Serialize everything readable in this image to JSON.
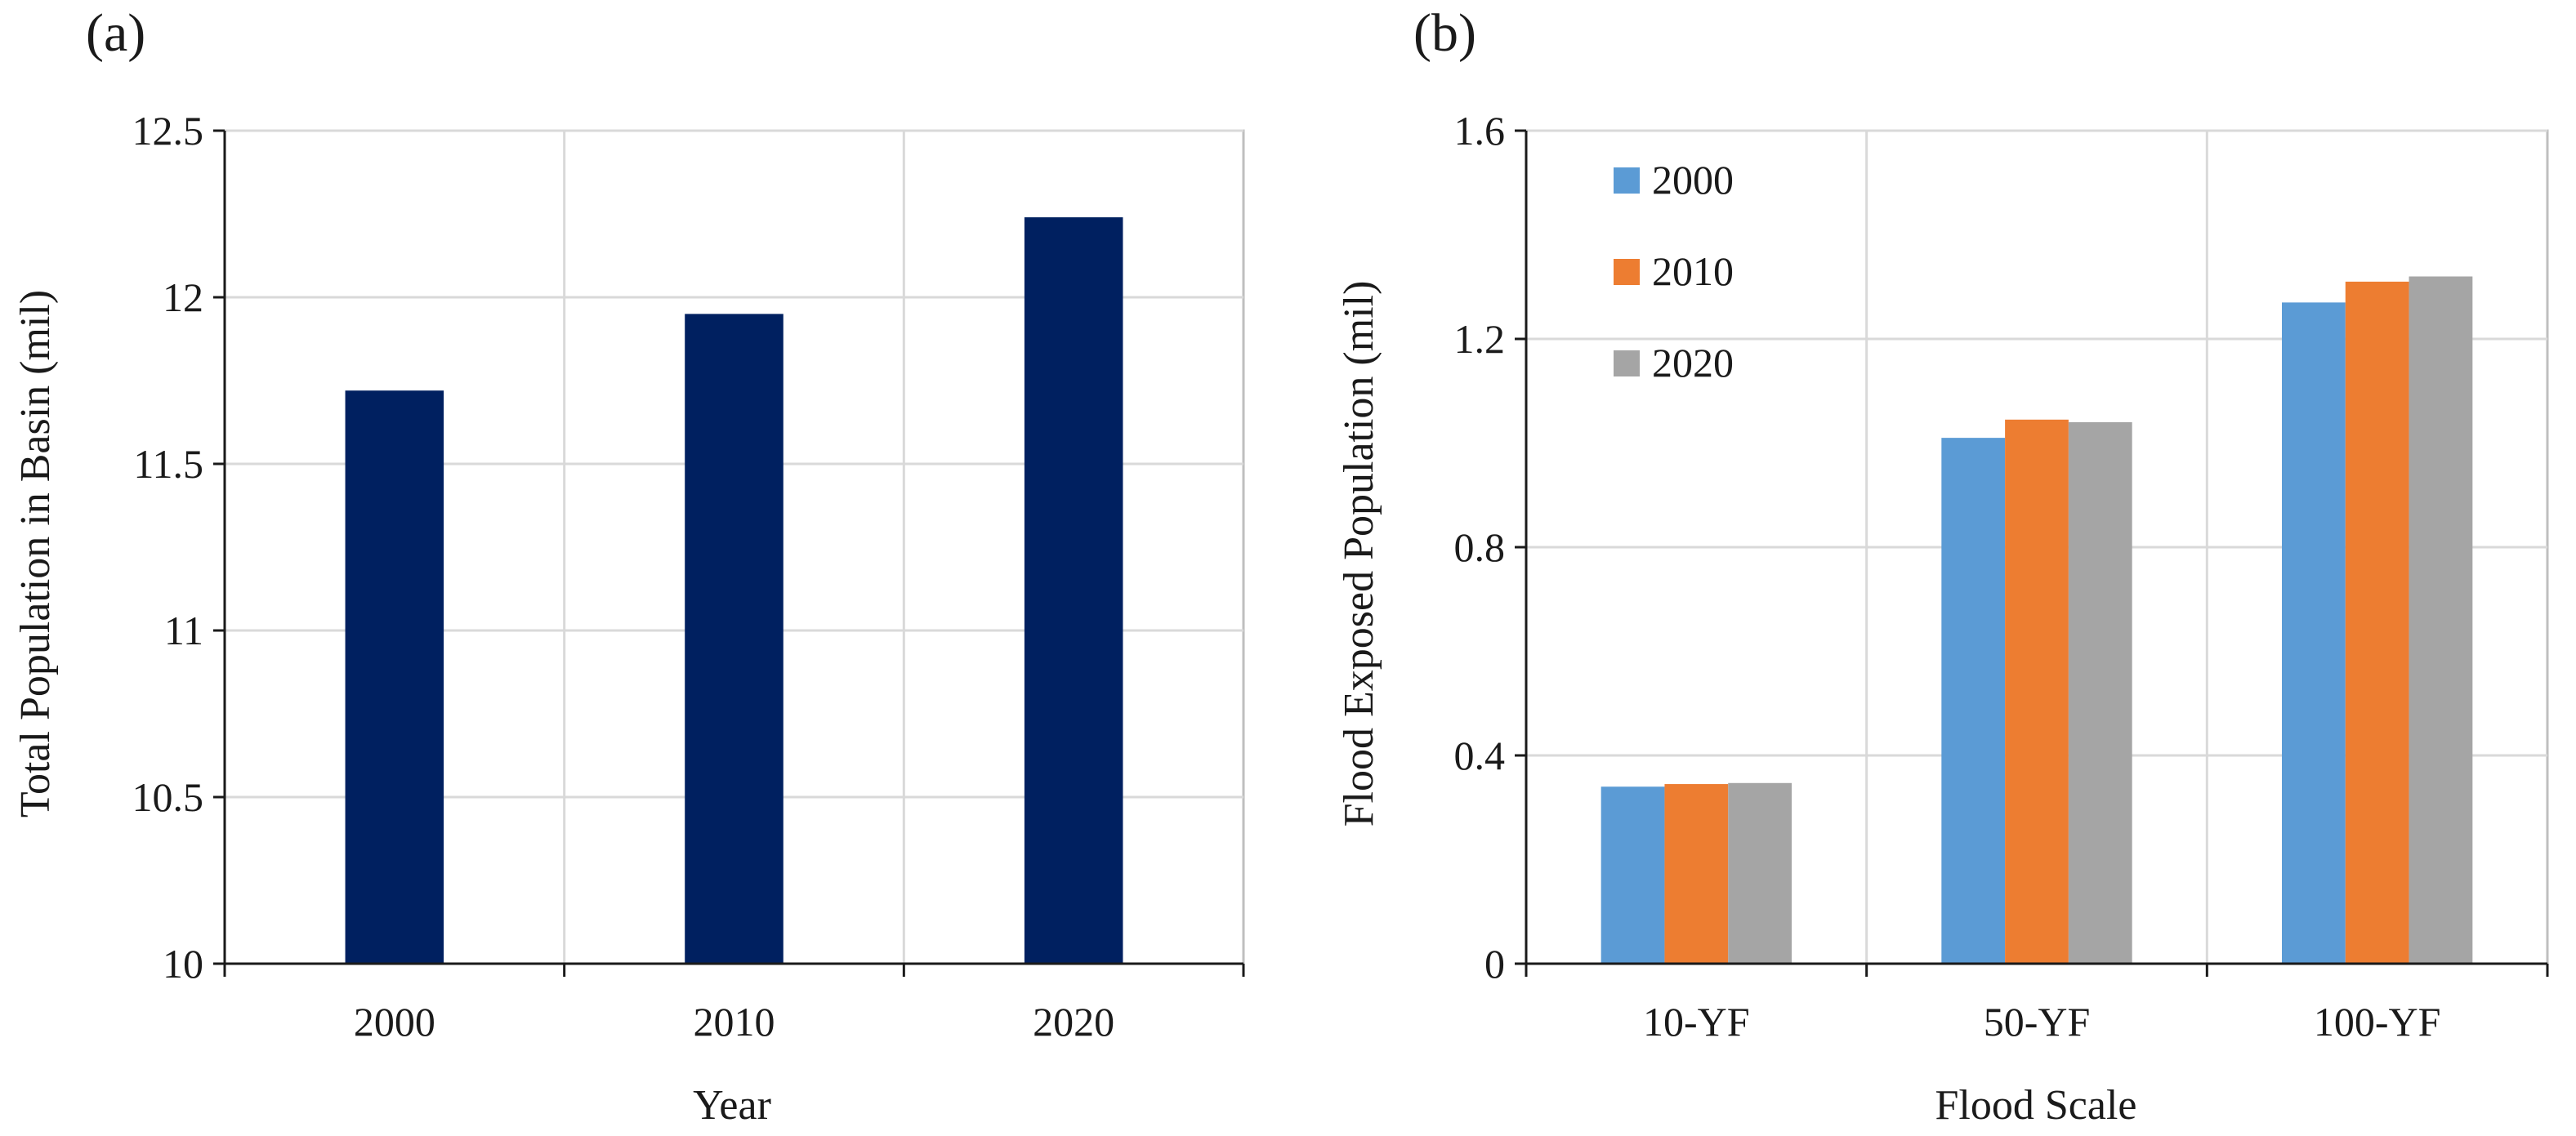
{
  "chart_data": [
    {
      "panel": "(a)",
      "type": "bar",
      "categories": [
        "2000",
        "2010",
        "2020"
      ],
      "values": [
        11.72,
        11.95,
        12.24
      ],
      "ylim": [
        10,
        12.5
      ],
      "yticks": [
        10,
        10.5,
        11,
        11.5,
        12,
        12.5
      ],
      "ytick_labels": [
        "10",
        "10.5",
        "11",
        "11.5",
        "12",
        "12.5"
      ],
      "xlabel": "Year",
      "ylabel": "Total Population in Basin (mil)",
      "grid": true,
      "color": "#002060"
    },
    {
      "panel": "(b)",
      "type": "bar",
      "categories": [
        "10-YF",
        "50-YF",
        "100-YF"
      ],
      "series": [
        {
          "name": "2000",
          "values": [
            0.34,
            1.01,
            1.27
          ],
          "color": "#5B9BD5"
        },
        {
          "name": "2010",
          "values": [
            0.345,
            1.045,
            1.31
          ],
          "color": "#ED7D31"
        },
        {
          "name": "2020",
          "values": [
            0.347,
            1.04,
            1.32
          ],
          "color": "#A5A5A5"
        }
      ],
      "ylim": [
        0,
        1.6
      ],
      "yticks": [
        0,
        0.4,
        0.8,
        1.2,
        1.6
      ],
      "ytick_labels": [
        "0",
        "0.4",
        "0.8",
        "1.2",
        "1.6"
      ],
      "xlabel": "Flood Scale",
      "ylabel": "Flood Exposed Population (mil)",
      "grid": true,
      "legend_position": "top-left"
    }
  ]
}
